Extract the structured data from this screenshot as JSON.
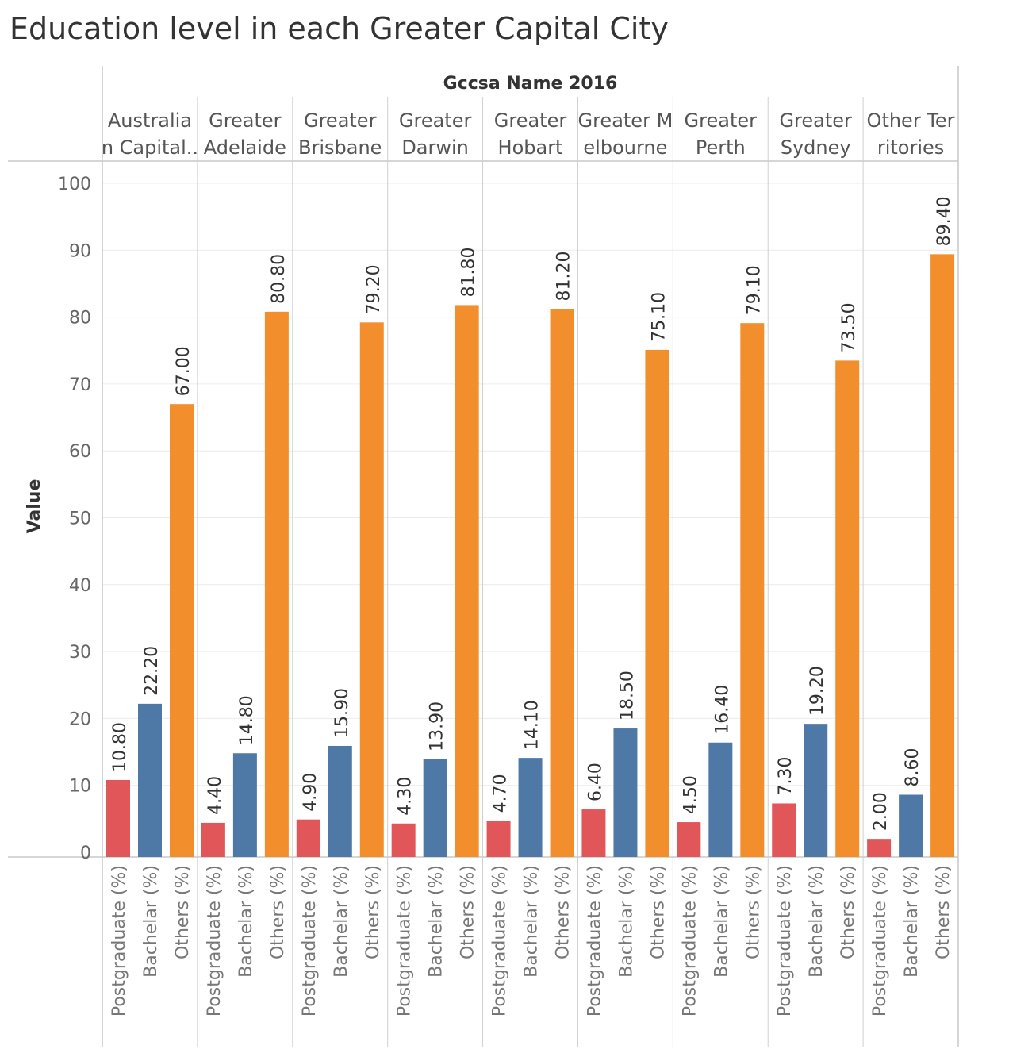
{
  "title": "Education level in each Greater Capital City",
  "chart_data": {
    "type": "bar",
    "title": "Education level in each Greater Capital City",
    "column_header": "Gccsa Name 2016",
    "ylabel": "Value",
    "ylim": [
      0,
      100
    ],
    "yticks": [
      0,
      10,
      20,
      30,
      40,
      50,
      60,
      70,
      80,
      90,
      100
    ],
    "grid": true,
    "measures": [
      "Postgraduate (%)",
      "Bachelar (%)",
      "Others (%)"
    ],
    "colors": {
      "Postgraduate (%)": "#e15759",
      "Bachelar (%)": "#4e79a7",
      "Others (%)": "#f28e2b"
    },
    "groups": [
      {
        "name": "Australia\nn Capital..",
        "values": [
          10.8,
          22.2,
          67.0
        ],
        "labels": [
          "10.80",
          "22.20",
          "67.00"
        ]
      },
      {
        "name": "Greater\nAdelaide",
        "values": [
          4.4,
          14.8,
          80.8
        ],
        "labels": [
          "4.40",
          "14.80",
          "80.80"
        ]
      },
      {
        "name": "Greater\nBrisbane",
        "values": [
          4.9,
          15.9,
          79.2
        ],
        "labels": [
          "4.90",
          "15.90",
          "79.20"
        ]
      },
      {
        "name": "Greater\nDarwin",
        "values": [
          4.3,
          13.9,
          81.8
        ],
        "labels": [
          "4.30",
          "13.90",
          "81.80"
        ]
      },
      {
        "name": "Greater\nHobart",
        "values": [
          4.7,
          14.1,
          81.2
        ],
        "labels": [
          "4.70",
          "14.10",
          "81.20"
        ]
      },
      {
        "name": "Greater M\nelbourne",
        "values": [
          6.4,
          18.5,
          75.1
        ],
        "labels": [
          "6.40",
          "18.50",
          "75.10"
        ]
      },
      {
        "name": "Greater\nPerth",
        "values": [
          4.5,
          16.4,
          79.1
        ],
        "labels": [
          "4.50",
          "16.40",
          "79.10"
        ]
      },
      {
        "name": "Greater\nSydney",
        "values": [
          7.3,
          19.2,
          73.5
        ],
        "labels": [
          "7.30",
          "19.20",
          "73.50"
        ]
      },
      {
        "name": "Other Ter\nritories",
        "values": [
          2.0,
          8.6,
          89.4
        ],
        "labels": [
          "2.00",
          "8.60",
          "89.40"
        ]
      }
    ]
  }
}
